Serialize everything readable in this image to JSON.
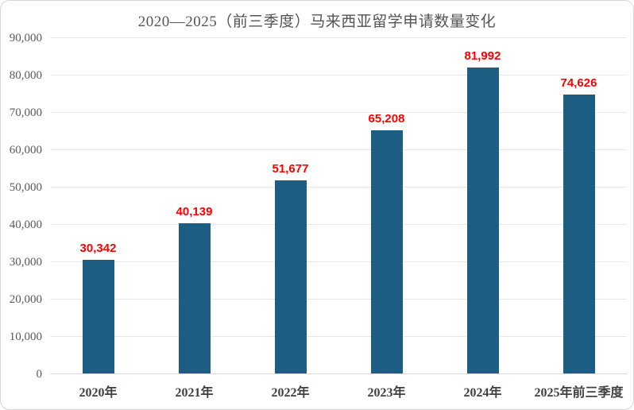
{
  "chart_data": {
    "type": "bar",
    "title": "2020—2025（前三季度）马来西亚留学申请数量变化",
    "categories": [
      "2020年",
      "2021年",
      "2022年",
      "2023年",
      "2024年",
      "2025年前三季度"
    ],
    "values": [
      30342,
      40139,
      51677,
      65208,
      81992,
      74626
    ],
    "value_labels": [
      "30,342",
      "40,139",
      "51,677",
      "65,208",
      "81,992",
      "74,626"
    ],
    "xlabel": "",
    "ylabel": "",
    "ylim": [
      0,
      90000
    ],
    "ytick_interval": 10000,
    "ytick_labels": [
      "0",
      "10,000",
      "20,000",
      "30,000",
      "40,000",
      "50,000",
      "60,000",
      "70,000",
      "80,000",
      "90,000"
    ],
    "grid": true,
    "legend": false,
    "colors": {
      "bar": "#1c5e82",
      "value_label": "#ff0000",
      "axis_text": "#595959",
      "category_text": "#404040",
      "title_text": "#545454",
      "gridline": "#e7e7e7"
    }
  }
}
